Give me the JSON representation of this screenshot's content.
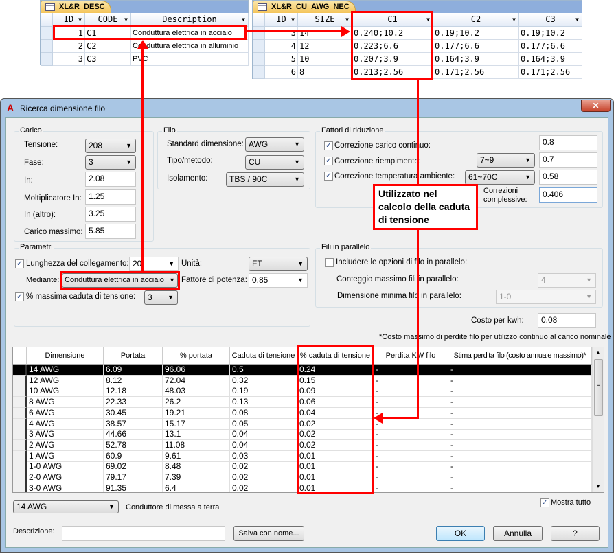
{
  "desc_table": {
    "tab": "XL&R_DESC",
    "headers": [
      "ID",
      "CODE",
      "Description"
    ],
    "rows": [
      [
        "1",
        "C1",
        "Conduttura elettrica in acciaio"
      ],
      [
        "2",
        "C2",
        "Conduttura elettrica in alluminio"
      ],
      [
        "3",
        "C3",
        "PVC"
      ]
    ]
  },
  "nec_table": {
    "tab": "XL&R_CU_AWG_NEC",
    "headers": [
      "ID",
      "SIZE",
      "C1",
      "C2",
      "C3"
    ],
    "rows": [
      [
        "3",
        "14",
        "0.240;10.2",
        "0.19;10.2",
        "0.19;10.2"
      ],
      [
        "4",
        "12",
        "0.223;6.6",
        "0.177;6.6",
        "0.177;6.6"
      ],
      [
        "5",
        "10",
        "0.207;3.9",
        "0.164;3.9",
        "0.164;3.9"
      ],
      [
        "6",
        "8",
        "0.213;2.56",
        "0.171;2.56",
        "0.171;2.56"
      ]
    ]
  },
  "callout": "Utilizzato nel calcolo della caduta di tensione",
  "dialog": {
    "title": "Ricerca dimensione filo",
    "close": "✕",
    "carico": {
      "title": "Carico",
      "tensione_label": "Tensione:",
      "tensione": "208",
      "fase_label": "Fase:",
      "fase": "3",
      "in_label": "In:",
      "in": "2.08",
      "molt_label": "Moltiplicatore In:",
      "molt": "1.25",
      "altro_label": "In (altro):",
      "altro": "3.25",
      "max_label": "Carico massimo:",
      "max": "5.85"
    },
    "filo": {
      "title": "Filo",
      "standard_label": "Standard dimensione:",
      "standard": "AWG",
      "tipo_label": "Tipo/metodo:",
      "tipo": "CU",
      "isol_label": "Isolamento:",
      "isol": "TBS / 90C"
    },
    "fattori": {
      "title": "Fattori di riduzione",
      "carico_label": "Correzione carico continuo:",
      "carico": "0.8",
      "riemp_label": "Correzione riempimento:",
      "riemp_sel": "7~9",
      "riemp": "0.7",
      "temp_label": "Correzione temperatura ambiente:",
      "temp_sel": "61~70C",
      "temp": "0.58",
      "compl_label": "Correzioni complessive:",
      "compl": "0.406"
    },
    "parametri": {
      "title": "Parametri",
      "lung_label": "Lunghezza del collegamento:",
      "lung": "20",
      "unita_label": "Unità:",
      "unita": "FT",
      "mediante_label": "Mediante:",
      "mediante": "Conduttura elettrica in acciaio",
      "fattore_label": "Fattore di potenza:",
      "fattore": "0.85",
      "caduta_label": "% massima caduta di tensione:",
      "caduta": "3"
    },
    "parallelo": {
      "title": "Fili in parallelo",
      "includi_label": "Includere le opzioni di filo in parallelo:",
      "conteggio_label": "Conteggio massimo fili in parallelo:",
      "conteggio": "4",
      "dim_label": "Dimensione minima filo in parallelo:",
      "dim": "1-0"
    },
    "costo_label": "Costo per kwh:",
    "costo": "0.08",
    "note": "*Costo massimo di perdite filo per utilizzo continuo al carico nominale",
    "grid": {
      "headers": [
        "Dimensione",
        "Portata",
        "% portata",
        "Caduta di tensione",
        "% caduta di tensione",
        "Perdita KW filo",
        "Stima perdita filo (costo annuale massimo)*"
      ],
      "rows": [
        [
          "14 AWG",
          "6.09",
          "96.06",
          "0.5",
          "0.24",
          "-",
          "-"
        ],
        [
          "12 AWG",
          "8.12",
          "72.04",
          "0.32",
          "0.15",
          "-",
          "-"
        ],
        [
          "10 AWG",
          "12.18",
          "48.03",
          "0.19",
          "0.09",
          "-",
          "-"
        ],
        [
          "8 AWG",
          "22.33",
          "26.2",
          "0.13",
          "0.06",
          "-",
          "-"
        ],
        [
          "6 AWG",
          "30.45",
          "19.21",
          "0.08",
          "0.04",
          "-",
          "-"
        ],
        [
          "4 AWG",
          "38.57",
          "15.17",
          "0.05",
          "0.02",
          "-",
          "-"
        ],
        [
          "3 AWG",
          "44.66",
          "13.1",
          "0.04",
          "0.02",
          "-",
          "-"
        ],
        [
          "2 AWG",
          "52.78",
          "11.08",
          "0.04",
          "0.02",
          "-",
          "-"
        ],
        [
          "1 AWG",
          "60.9",
          "9.61",
          "0.03",
          "0.01",
          "-",
          "-"
        ],
        [
          "1-0 AWG",
          "69.02",
          "8.48",
          "0.02",
          "0.01",
          "-",
          "-"
        ],
        [
          "2-0 AWG",
          "79.17",
          "7.39",
          "0.02",
          "0.01",
          "-",
          "-"
        ],
        [
          "3-0 AWG",
          "91.35",
          "6.4",
          "0.02",
          "0.01",
          "-",
          "-"
        ]
      ]
    },
    "terra": "14 AWG",
    "terra_label": "Conduttore di messa a terra",
    "mostra_label": "Mostra tutto",
    "descr_label": "Descrizione:",
    "descr": "",
    "salva": "Salva con nome...",
    "ok": "OK",
    "annulla": "Annulla",
    "help": "?"
  }
}
